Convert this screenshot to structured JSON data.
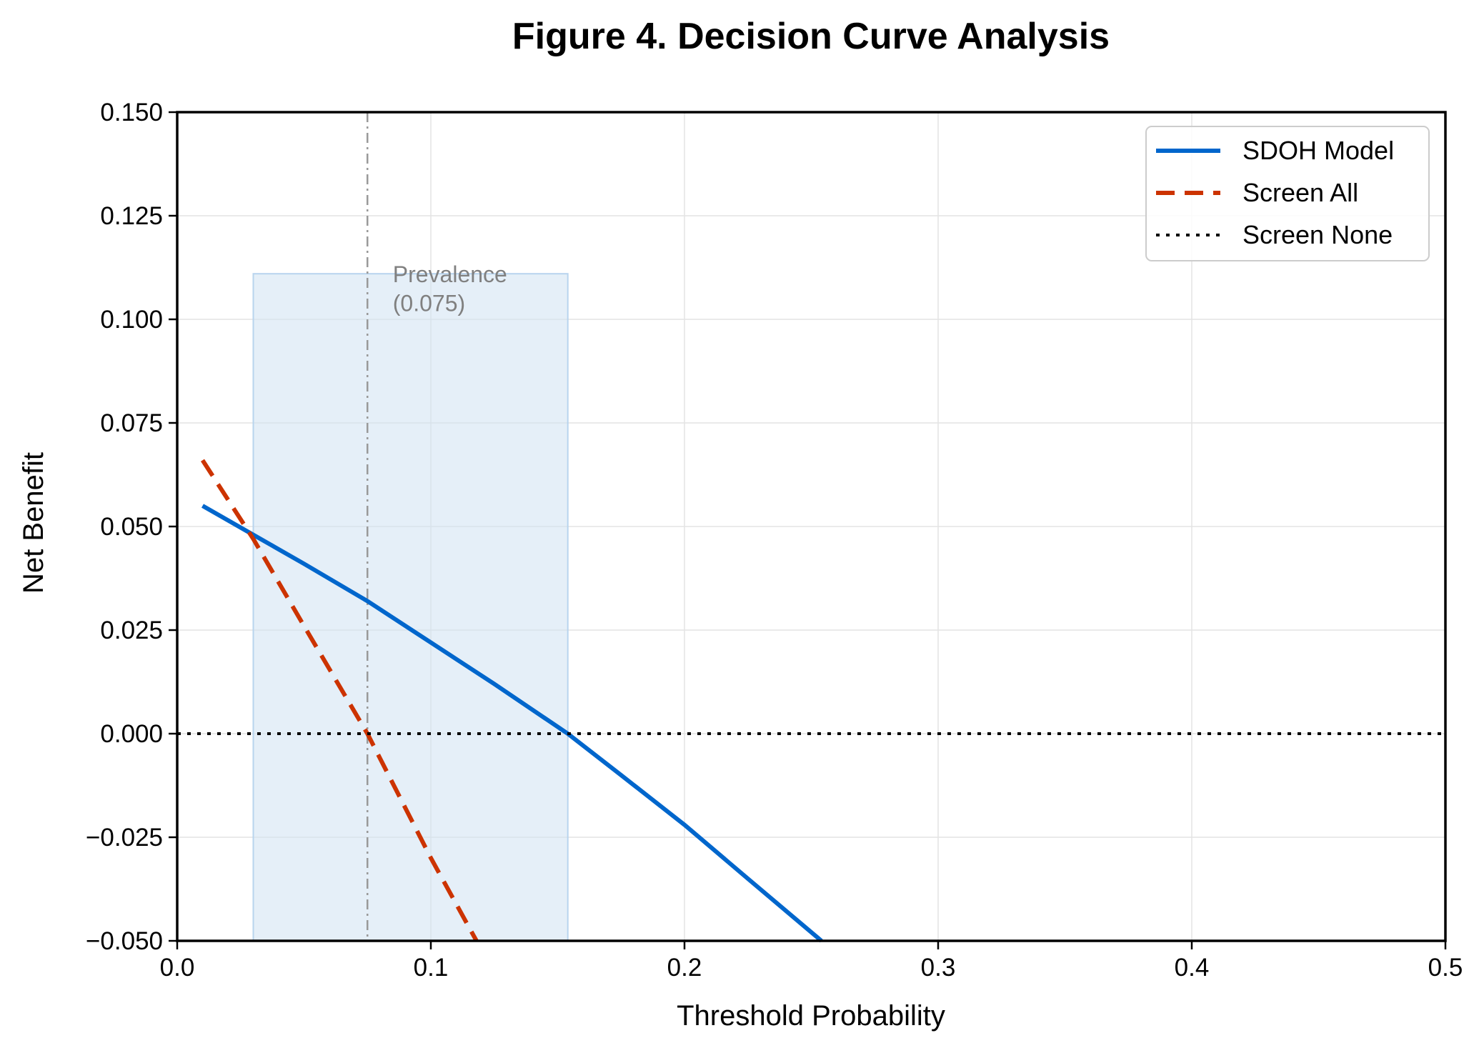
{
  "chart_data": {
    "type": "line",
    "title": "Figure 4. Decision Curve Analysis",
    "xlabel": "Threshold Probability",
    "ylabel": "Net Benefit",
    "xlim": [
      0.0,
      0.5
    ],
    "ylim": [
      -0.05,
      0.15
    ],
    "xticks": [
      0.0,
      0.1,
      0.2,
      0.3,
      0.4,
      0.5
    ],
    "xtick_labels": [
      "0.0",
      "0.1",
      "0.2",
      "0.3",
      "0.4",
      "0.5"
    ],
    "yticks": [
      -0.05,
      -0.025,
      0.0,
      0.025,
      0.05,
      0.075,
      0.1,
      0.125,
      0.15
    ],
    "ytick_labels": [
      "−0.050",
      "−0.025",
      "0.000",
      "0.025",
      "0.050",
      "0.075",
      "0.100",
      "0.125",
      "0.150"
    ],
    "grid": true,
    "legend_position": "top-right",
    "series": [
      {
        "name": "SDOH Model",
        "style": "solid",
        "color": "#0066cc",
        "x": [
          0.01,
          0.03,
          0.05,
          0.075,
          0.1,
          0.125,
          0.154,
          0.175,
          0.2,
          0.225,
          0.254
        ],
        "y": [
          0.055,
          0.048,
          0.041,
          0.032,
          0.022,
          0.012,
          0.0,
          -0.01,
          -0.022,
          -0.035,
          -0.05
        ]
      },
      {
        "name": "Screen All",
        "style": "dashed",
        "color": "#cc3300",
        "x": [
          0.01,
          0.03,
          0.05,
          0.075,
          0.1,
          0.118
        ],
        "y": [
          0.066,
          0.047,
          0.026,
          0.0,
          -0.03,
          -0.05
        ]
      },
      {
        "name": "Screen None",
        "style": "dotted",
        "color": "#000000",
        "x": [
          0.0,
          0.5
        ],
        "y": [
          0.0,
          0.0
        ]
      }
    ],
    "shaded_region": {
      "x": [
        0.03,
        0.154
      ],
      "y": [
        -0.05,
        0.111
      ],
      "color": "#cfe2f3"
    },
    "prevalence_line": {
      "x": 0.075,
      "color": "#999999"
    },
    "annotations": [
      {
        "text": "Prevalence",
        "x": 0.085,
        "y": 0.109
      },
      {
        "text": "(0.075)",
        "x": 0.085,
        "y": 0.102
      }
    ]
  }
}
